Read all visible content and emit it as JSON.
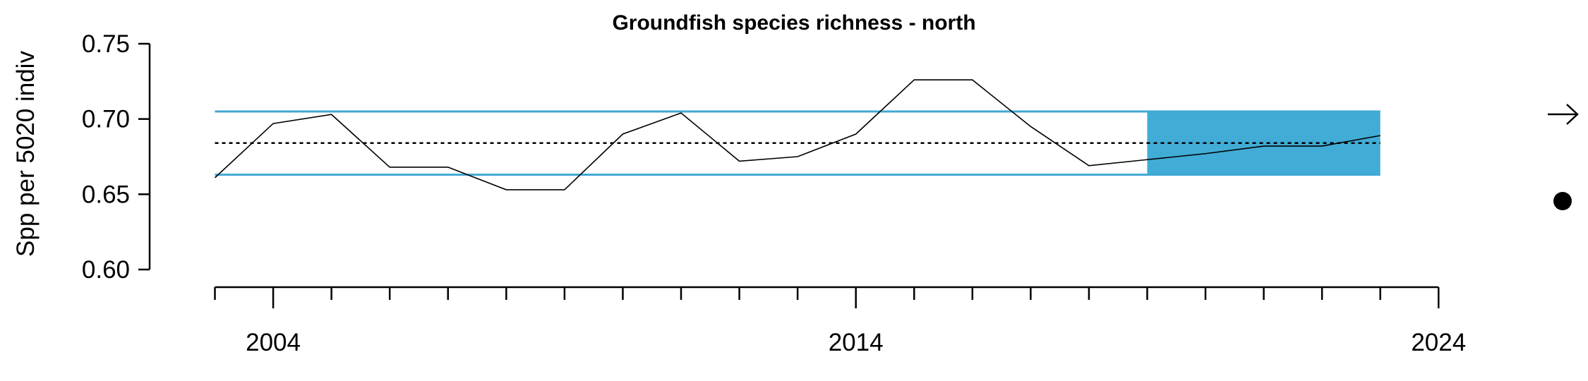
{
  "chart_data": {
    "type": "line",
    "title": "Groundfish species richness - north",
    "ylabel": "Spp per 5020 indiv",
    "xlabel": "",
    "x": [
      2003,
      2004,
      2005,
      2006,
      2007,
      2008,
      2009,
      2010,
      2011,
      2012,
      2013,
      2014,
      2015,
      2016,
      2017,
      2018,
      2019,
      2020,
      2021,
      2022,
      2023
    ],
    "values": [
      0.661,
      0.697,
      0.703,
      0.668,
      0.668,
      0.653,
      0.653,
      0.69,
      0.704,
      0.672,
      0.675,
      0.69,
      0.726,
      0.726,
      0.695,
      0.669,
      0.673,
      0.677,
      0.682,
      0.682,
      0.689
    ],
    "mean": 0.684,
    "upper_sd": 0.705,
    "lower_sd": 0.663,
    "recent_window": [
      2019,
      2023
    ],
    "ylim": [
      0.6,
      0.75
    ],
    "xlim": [
      2002.8,
      2023.9
    ],
    "yticks": [
      "0.60",
      "0.65",
      "0.70",
      "0.75"
    ],
    "xticks_labeled": [
      2004,
      2014,
      2024
    ],
    "xticks_minor": [
      2003,
      2004,
      2005,
      2006,
      2007,
      2008,
      2009,
      2010,
      2011,
      2012,
      2013,
      2014,
      2015,
      2016,
      2017,
      2018,
      2019,
      2020,
      2021,
      2022,
      2023,
      2024
    ],
    "trend_indicator": "right-arrow",
    "status_indicator": "filled-circle",
    "colors": {
      "sd_lines": "#3fa8d4",
      "recent_fill": "#41acd6",
      "series": "#000000",
      "mean_line": "#000000"
    }
  }
}
